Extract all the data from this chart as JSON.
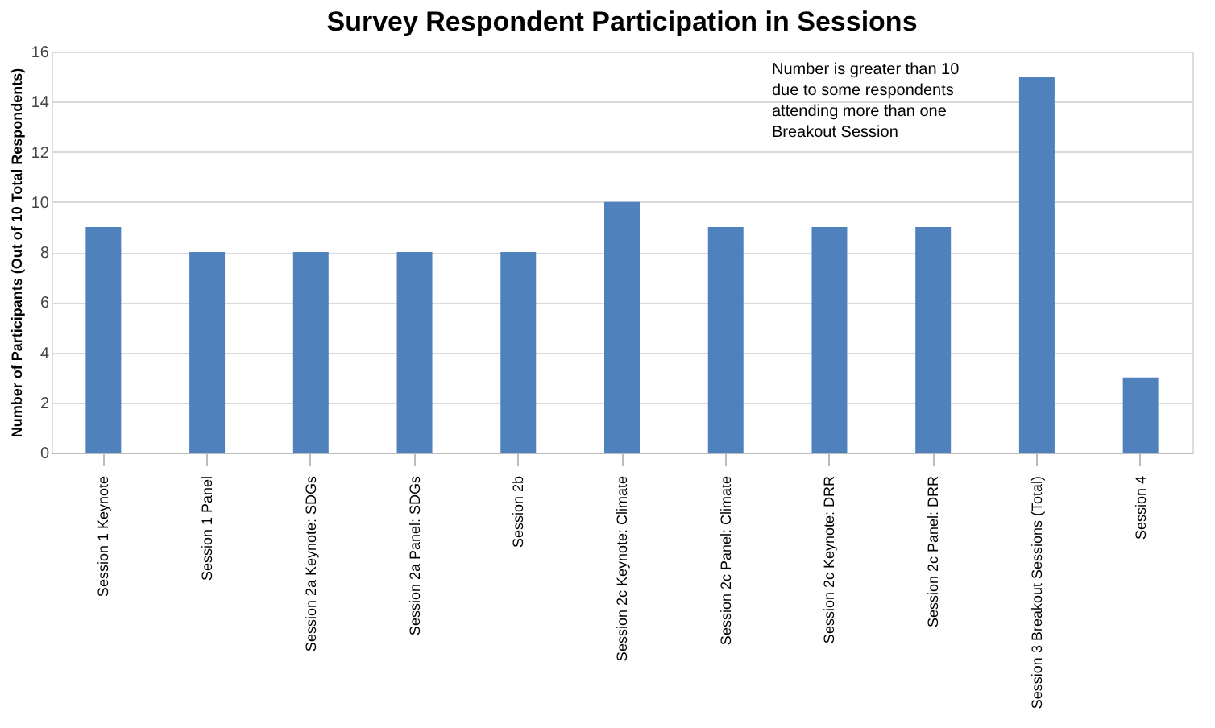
{
  "chart_data": {
    "type": "bar",
    "title": "Survey Respondent Participation in Sessions",
    "ylabel": "Number of Participants (Out of 10 Total Respondents)",
    "categories": [
      "Session 1 Keynote",
      "Session 1 Panel",
      "Session 2a Keynote: SDGs",
      "Session 2a Panel: SDGs",
      "Session 2b",
      "Session 2c Keynote: Climate",
      "Session 2c Panel: Climate",
      "Session 2c Keynote: DRR",
      "Session 2c Panel: DRR",
      "Session 3 Breakout Sessions (Total)",
      "Session 4"
    ],
    "values": [
      9,
      8,
      8,
      8,
      8,
      10,
      9,
      9,
      9,
      15,
      3
    ],
    "color": "#4f81bd",
    "ylim": [
      0,
      16
    ],
    "yticks": [
      0,
      2,
      4,
      6,
      8,
      10,
      12,
      14,
      16
    ],
    "grid": "y",
    "annotations": [
      "Number is greater than 10 due to some respondents attending more than one Breakout Session"
    ]
  }
}
